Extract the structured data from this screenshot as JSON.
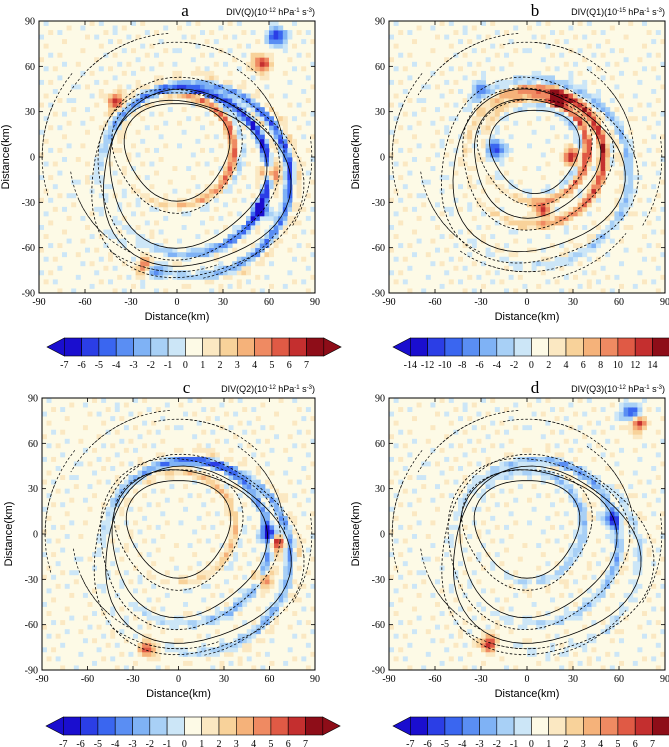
{
  "chart_data": [
    {
      "type": "heatmap",
      "panel_letter": "a",
      "title_html_parts": [
        "DIV(Q)(10",
        "-12",
        " hPa",
        "-1",
        " s",
        "-3",
        ")"
      ],
      "xlabel": "Distance(km)",
      "ylabel": "Distance(km)",
      "xlim": [
        -90,
        90
      ],
      "ylim": [
        -90,
        90
      ],
      "ticks": [
        -90,
        -60,
        -30,
        0,
        30,
        60,
        90
      ],
      "colorbar_labels": [
        "-7",
        "-6",
        "-5",
        "-4",
        "-3",
        "-2",
        "-1",
        "0",
        "1",
        "2",
        "3",
        "4",
        "5",
        "6",
        "7"
      ],
      "rings": [
        {
          "cx": 0,
          "cy": 5,
          "r": 38,
          "sign": 1,
          "amp": 0.8
        },
        {
          "cx": 5,
          "cy": -10,
          "r": 55,
          "sign": -1,
          "amp": 1.0
        },
        {
          "cx": 10,
          "cy": -15,
          "r": 65,
          "sign": 1,
          "amp": 0.9
        }
      ],
      "blobs": [
        {
          "x": 65,
          "y": 80,
          "sign": -1,
          "amp": 1.0
        },
        {
          "x": 55,
          "y": 62,
          "sign": 1,
          "amp": 0.9
        },
        {
          "x": -20,
          "y": -72,
          "sign": 1,
          "amp": 0.9
        },
        {
          "x": -15,
          "y": -75,
          "sign": -1,
          "amp": 0.7
        },
        {
          "x": -40,
          "y": 37,
          "sign": 1,
          "amp": 0.8
        },
        {
          "x": 55,
          "y": -35,
          "sign": -1,
          "amp": 1.0
        },
        {
          "x": 60,
          "y": -10,
          "sign": 1,
          "amp": 1.0
        }
      ]
    },
    {
      "type": "heatmap",
      "panel_letter": "b",
      "title_html_parts": [
        "DIV(Q1)(10",
        "-15",
        " hPa",
        "-1",
        " s",
        "-3",
        ")"
      ],
      "xlabel": "Distance(km)",
      "ylabel": "Distance(km)",
      "xlim": [
        -90,
        90
      ],
      "ylim": [
        -90,
        90
      ],
      "ticks": [
        -90,
        -60,
        -30,
        0,
        30,
        60,
        90
      ],
      "colorbar_labels": [
        "-14",
        "-12",
        "-10",
        "-8",
        "-6",
        "-4",
        "-2",
        "0",
        "2",
        "4",
        "6",
        "8",
        "10",
        "12",
        "14"
      ],
      "rings": [
        {
          "cx": 5,
          "cy": 5,
          "r": 33,
          "sign": 1,
          "amp": 1.0
        },
        {
          "cx": 5,
          "cy": 0,
          "r": 45,
          "sign": -1,
          "amp": 0.9
        },
        {
          "cx": 5,
          "cy": -10,
          "r": 60,
          "sign": 1,
          "amp": 0.5
        }
      ],
      "blobs": [
        {
          "x": 20,
          "y": 38,
          "sign": 1,
          "amp": 1.0
        },
        {
          "x": 30,
          "y": 0,
          "sign": 1,
          "amp": 1.0
        },
        {
          "x": -20,
          "y": 5,
          "sign": -1,
          "amp": 0.9
        },
        {
          "x": 10,
          "y": -35,
          "sign": 1,
          "amp": 0.8
        },
        {
          "x": -30,
          "y": 45,
          "sign": -1,
          "amp": 0.6
        }
      ]
    },
    {
      "type": "heatmap",
      "panel_letter": "c",
      "title_html_parts": [
        "DIV(Q2)(10",
        "-12",
        " hPa",
        "-1",
        " s",
        "-3",
        ")"
      ],
      "xlabel": "Distance(km)",
      "ylabel": "Distance(km)",
      "xlim": [
        -90,
        90
      ],
      "ylim": [
        -90,
        90
      ],
      "ticks": [
        -90,
        -60,
        -30,
        0,
        30,
        60,
        90
      ],
      "colorbar_labels": [
        "-7",
        "-6",
        "-5",
        "-4",
        "-3",
        "-2",
        "-1",
        "0",
        "1",
        "2",
        "3",
        "4",
        "5",
        "6",
        "7"
      ],
      "rings": [
        {
          "cx": 0,
          "cy": 5,
          "r": 38,
          "sign": 1,
          "amp": 0.4
        },
        {
          "cx": 5,
          "cy": -5,
          "r": 55,
          "sign": -1,
          "amp": 0.6
        },
        {
          "cx": 10,
          "cy": -15,
          "r": 65,
          "sign": 1,
          "amp": 0.6
        }
      ],
      "blobs": [
        {
          "x": 60,
          "y": 0,
          "sign": -1,
          "amp": 1.0
        },
        {
          "x": 64,
          "y": -5,
          "sign": 1,
          "amp": 1.0
        },
        {
          "x": -20,
          "y": -75,
          "sign": 1,
          "amp": 0.8
        },
        {
          "x": 55,
          "y": -30,
          "sign": 1,
          "amp": 0.7
        }
      ]
    },
    {
      "type": "heatmap",
      "panel_letter": "d",
      "title_html_parts": [
        "DIV(Q3)(10",
        "-12",
        " hPa",
        "-1",
        " s",
        "-3",
        ")"
      ],
      "xlabel": "Distance(km)",
      "ylabel": "Distance(km)",
      "xlim": [
        -90,
        90
      ],
      "ylim": [
        -90,
        90
      ],
      "ticks": [
        -90,
        -60,
        -30,
        0,
        30,
        60,
        90
      ],
      "colorbar_labels": [
        "-7",
        "-6",
        "-5",
        "-4",
        "-3",
        "-2",
        "-1",
        "0",
        "1",
        "2",
        "3",
        "4",
        "5",
        "6",
        "7"
      ],
      "rings": [
        {
          "cx": 0,
          "cy": 5,
          "r": 38,
          "sign": -1,
          "amp": 0.45
        },
        {
          "cx": 5,
          "cy": -5,
          "r": 55,
          "sign": -1,
          "amp": 0.45
        },
        {
          "cx": 10,
          "cy": -15,
          "r": 65,
          "sign": 1,
          "amp": 0.25
        }
      ],
      "blobs": [
        {
          "x": 68,
          "y": 80,
          "sign": -1,
          "amp": 1.0
        },
        {
          "x": 72,
          "y": 74,
          "sign": 1,
          "amp": 0.9
        },
        {
          "x": -25,
          "y": -72,
          "sign": 1,
          "amp": 0.9
        },
        {
          "x": 55,
          "y": 10,
          "sign": -1,
          "amp": 0.7
        }
      ]
    }
  ],
  "palette": {
    "blue_scale": [
      "#1a0ecf",
      "#2b3ee6",
      "#3a66f0",
      "#5a8ef3",
      "#7fb2f5",
      "#a8d0f6",
      "#cce6f7"
    ],
    "zero": "#fdfae6",
    "red_scale": [
      "#fbe8c2",
      "#f8d29a",
      "#f5b27a",
      "#ef8a62",
      "#e05a45",
      "#c42f2f",
      "#8e0d18"
    ]
  }
}
